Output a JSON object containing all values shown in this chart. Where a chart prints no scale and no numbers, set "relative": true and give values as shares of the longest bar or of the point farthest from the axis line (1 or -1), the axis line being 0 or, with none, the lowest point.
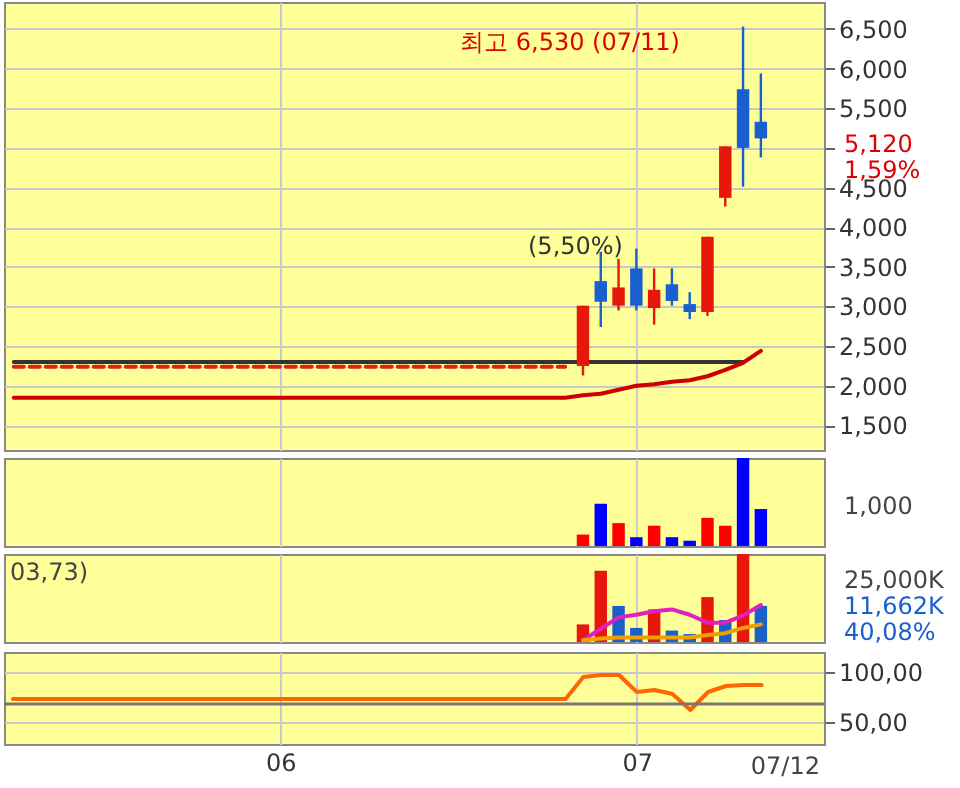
{
  "chart_data": [
    {
      "type": "candlestick",
      "categories": [
        null,
        null,
        null,
        null,
        null,
        null,
        null,
        null,
        null,
        null,
        null,
        null,
        null,
        null,
        null,
        "06",
        null,
        null,
        null,
        null,
        null,
        null,
        null,
        null,
        null,
        null,
        null,
        null,
        null,
        null,
        null,
        null,
        null,
        null,
        null,
        "07",
        null,
        null,
        null,
        null,
        null,
        null,
        null,
        null,
        null,
        null
      ],
      "ohlc": [
        null,
        null,
        null,
        null,
        null,
        null,
        null,
        null,
        null,
        null,
        null,
        null,
        null,
        null,
        null,
        null,
        null,
        null,
        null,
        null,
        null,
        null,
        null,
        null,
        null,
        null,
        null,
        null,
        null,
        null,
        null,
        null,
        [
          2250,
          3010,
          2130,
          3010
        ],
        [
          3320,
          3690,
          2740,
          3060
        ],
        [
          3010,
          3600,
          2950,
          3240
        ],
        [
          3480,
          3730,
          2950,
          3010
        ],
        [
          2980,
          3480,
          2770,
          3210
        ],
        [
          3280,
          3480,
          3010,
          3070
        ],
        [
          3030,
          3180,
          2840,
          2930
        ],
        [
          2930,
          3880,
          2880,
          3880
        ],
        [
          4370,
          5020,
          4260,
          5020
        ],
        [
          5740,
          6530,
          4510,
          5000
        ],
        [
          5330,
          5940,
          4880,
          5120
        ],
        null,
        null,
        null
      ],
      "colors": [
        null,
        null,
        null,
        null,
        null,
        null,
        null,
        null,
        null,
        null,
        null,
        null,
        null,
        null,
        null,
        null,
        null,
        null,
        null,
        null,
        null,
        null,
        null,
        null,
        null,
        null,
        null,
        null,
        null,
        null,
        null,
        null,
        "#e8170c",
        "#1a5fd0",
        "#e8170c",
        "#1a5fd0",
        "#e8170c",
        "#1a5fd0",
        "#1a5fd0",
        "#e8170c",
        "#e8170c",
        "#1a5fd0",
        "#1a5fd0",
        null,
        null,
        null
      ],
      "series": [
        {
          "type": "line",
          "color": "#333333",
          "values": [
            2300,
            2300,
            2300,
            2300,
            2300,
            2300,
            2300,
            2300,
            2300,
            2300,
            2300,
            2300,
            2300,
            2300,
            2300,
            2300,
            2300,
            2300,
            2300,
            2300,
            2300,
            2300,
            2300,
            2300,
            2300,
            2300,
            2300,
            2300,
            2300,
            2300,
            2300,
            2300,
            2300,
            2300,
            2300,
            2300,
            2300,
            2300,
            2300,
            2300,
            2300,
            2300,
            null,
            null,
            null,
            null
          ]
        },
        {
          "type": "line",
          "color": "#cc0000",
          "values": [
            1850,
            1850,
            1850,
            1850,
            1850,
            1850,
            1850,
            1850,
            1850,
            1850,
            1850,
            1850,
            1850,
            1850,
            1850,
            1850,
            1850,
            1850,
            1850,
            1850,
            1850,
            1850,
            1850,
            1850,
            1850,
            1850,
            1850,
            1850,
            1850,
            1850,
            1850,
            1850,
            1880,
            1900,
            1950,
            2000,
            2020,
            2050,
            2070,
            2120,
            2200,
            2290,
            2440,
            null,
            null,
            null
          ]
        },
        {
          "type": "line",
          "color": "#e02020",
          "line_style": "dashed",
          "values": [
            2240,
            2240,
            2240,
            2240,
            2240,
            2240,
            2240,
            2240,
            2240,
            2240,
            2240,
            2240,
            2240,
            2240,
            2240,
            2240,
            2240,
            2240,
            2240,
            2240,
            2240,
            2240,
            2240,
            2240,
            2240,
            2240,
            2240,
            2240,
            2240,
            2240,
            2240,
            2240,
            null,
            null,
            null,
            null,
            null,
            null,
            null,
            null,
            null,
            null,
            null,
            null,
            null,
            null
          ]
        }
      ],
      "ylim": [
        1190,
        6840
      ],
      "yticks": [
        {
          "value": 1500,
          "label": "1,500"
        },
        {
          "value": 2000,
          "label": "2,000"
        },
        {
          "value": 2500,
          "label": "2,500"
        },
        {
          "value": 3000,
          "label": "3,000"
        },
        {
          "value": 3500,
          "label": "3,500"
        },
        {
          "value": 4000,
          "label": "4,000"
        },
        {
          "value": 4500,
          "label": "4,500"
        },
        {
          "value": 5000,
          "label": null
        },
        {
          "value": 5500,
          "label": "5,500"
        },
        {
          "value": 6000,
          "label": "6,000"
        },
        {
          "value": 6500,
          "label": "6,500"
        }
      ],
      "grid": true,
      "tick_labels": "y",
      "annotations": [
        "최고 6,530 (07/11)",
        "(5,50%)",
        "5,120",
        "1,59%"
      ]
    },
    {
      "type": "bar",
      "categories": [
        null,
        null,
        null,
        null,
        null,
        null,
        null,
        null,
        null,
        null,
        null,
        null,
        null,
        null,
        null,
        "06",
        null,
        null,
        null,
        null,
        null,
        null,
        null,
        null,
        null,
        null,
        null,
        null,
        null,
        null,
        null,
        null,
        null,
        null,
        null,
        "07",
        null,
        null,
        null,
        null,
        null,
        null,
        null,
        null,
        null,
        null
      ],
      "series": [
        {
          "color": "#ff0000",
          "values": [
            null,
            null,
            null,
            null,
            null,
            null,
            null,
            null,
            null,
            null,
            null,
            null,
            null,
            null,
            null,
            null,
            null,
            null,
            null,
            null,
            null,
            null,
            null,
            null,
            null,
            null,
            null,
            null,
            null,
            null,
            null,
            null,
            0.13,
            null,
            0.26,
            null,
            0.23,
            null,
            null,
            0.32,
            0.23,
            null,
            null,
            null,
            null,
            null
          ]
        },
        {
          "color": "#0000ff",
          "values": [
            null,
            null,
            null,
            null,
            null,
            null,
            null,
            null,
            null,
            null,
            null,
            null,
            null,
            null,
            null,
            null,
            null,
            null,
            null,
            null,
            null,
            null,
            null,
            null,
            null,
            null,
            null,
            null,
            null,
            null,
            null,
            null,
            null,
            0.48,
            null,
            0.1,
            null,
            0.1,
            0.06,
            null,
            null,
            1,
            0.42,
            null,
            null,
            null
          ]
        }
      ],
      "relative": true,
      "grid": "x",
      "tick_labels": false,
      "annotations": [
        "1,000"
      ]
    },
    {
      "type": "bar",
      "categories": [
        null,
        null,
        null,
        null,
        null,
        null,
        null,
        null,
        null,
        null,
        null,
        null,
        null,
        null,
        null,
        "06",
        null,
        null,
        null,
        null,
        null,
        null,
        null,
        null,
        null,
        null,
        null,
        null,
        null,
        null,
        null,
        null,
        null,
        null,
        null,
        "07",
        null,
        null,
        null,
        null,
        null,
        null,
        null,
        null,
        null,
        null
      ],
      "series": [
        {
          "color": "#e8170c",
          "values": [
            null,
            null,
            null,
            null,
            null,
            null,
            null,
            null,
            null,
            null,
            null,
            null,
            null,
            null,
            null,
            null,
            null,
            null,
            null,
            null,
            null,
            null,
            null,
            null,
            null,
            null,
            null,
            null,
            null,
            null,
            null,
            null,
            0.2,
            0.81,
            null,
            null,
            0.37,
            null,
            null,
            0.51,
            null,
            1,
            null,
            null,
            null,
            null
          ]
        },
        {
          "color": "#1b5fc8",
          "values": [
            null,
            null,
            null,
            null,
            null,
            null,
            null,
            null,
            null,
            null,
            null,
            null,
            null,
            null,
            null,
            null,
            null,
            null,
            null,
            null,
            null,
            null,
            null,
            null,
            null,
            null,
            null,
            null,
            null,
            null,
            null,
            null,
            null,
            null,
            0.41,
            0.16,
            null,
            0.13,
            0.09,
            null,
            0.25,
            null,
            0.41,
            null,
            null,
            null
          ]
        },
        {
          "type": "line",
          "color": "#e020c0",
          "values": [
            null,
            null,
            null,
            null,
            null,
            null,
            null,
            null,
            null,
            null,
            null,
            null,
            null,
            null,
            null,
            null,
            null,
            null,
            null,
            null,
            null,
            null,
            null,
            null,
            null,
            null,
            null,
            null,
            null,
            null,
            null,
            null,
            0.02,
            0.15,
            0.28,
            0.31,
            0.35,
            0.37,
            0.31,
            0.22,
            0.22,
            0.3,
            0.42,
            null,
            null,
            null
          ]
        },
        {
          "type": "line",
          "color": "#f0a000",
          "values": [
            null,
            null,
            null,
            null,
            null,
            null,
            null,
            null,
            null,
            null,
            null,
            null,
            null,
            null,
            null,
            null,
            null,
            null,
            null,
            null,
            null,
            null,
            null,
            null,
            null,
            null,
            null,
            null,
            null,
            null,
            null,
            null,
            0.02,
            0.04,
            0.05,
            0.05,
            0.05,
            0.05,
            0.05,
            0.08,
            0.1,
            0.16,
            0.2,
            null,
            null,
            null
          ]
        }
      ],
      "relative": true,
      "grid": "x",
      "tick_labels": false,
      "annotations": [
        "03,73)",
        "25,000K",
        "11,662K",
        "40,08%"
      ]
    },
    {
      "type": "line",
      "categories": [
        null,
        null,
        null,
        null,
        null,
        null,
        null,
        null,
        null,
        null,
        null,
        null,
        null,
        null,
        null,
        "06",
        null,
        null,
        null,
        null,
        null,
        null,
        null,
        null,
        null,
        null,
        null,
        null,
        null,
        null,
        null,
        null,
        null,
        null,
        null,
        "07",
        null,
        null,
        null,
        null,
        null,
        null,
        null,
        null,
        null,
        null
      ],
      "series": [
        {
          "color": "#ff6600",
          "values": [
            73,
            73,
            73,
            73,
            73,
            73,
            73,
            73,
            73,
            73,
            73,
            73,
            73,
            73,
            73,
            73,
            73,
            73,
            73,
            73,
            73,
            73,
            73,
            73,
            73,
            73,
            73,
            73,
            73,
            73,
            73,
            73,
            95,
            97,
            97,
            80,
            82,
            78,
            62,
            80,
            86,
            87,
            87,
            null,
            null,
            null
          ]
        }
      ],
      "ylim": [
        28,
        120
      ],
      "yticks": [
        {
          "value": 100,
          "label": "100,00"
        },
        {
          "value": 50,
          "label": "50,00"
        }
      ],
      "grid": true,
      "ref_lines": [
        {
          "axis": "y",
          "value": 68,
          "color": "#777777"
        }
      ],
      "annotations": [
        "07/12"
      ]
    }
  ]
}
